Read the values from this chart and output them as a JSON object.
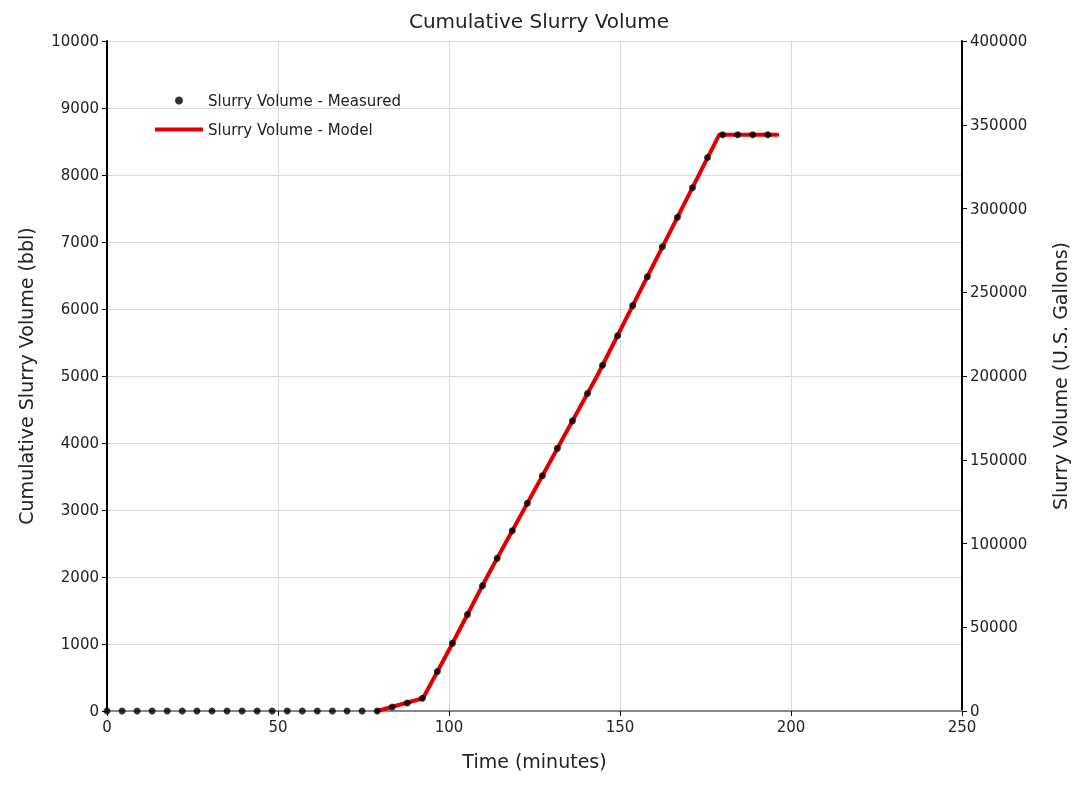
{
  "chart_data": {
    "type": "line",
    "title": "Cumulative Slurry Volume",
    "xlabel": "Time (minutes)",
    "ylabel": "Cumulative Slurry Volume (bbl)",
    "y2label": "Slurry Volume (U.S. Gallons)",
    "series": [
      {
        "name": "Slurry Volume - Measured",
        "type": "scatter",
        "color": "#000000",
        "marker": "circle",
        "x": [
          0,
          4.4,
          8.8,
          13.2,
          17.6,
          22,
          26.3,
          30.7,
          35.1,
          39.5,
          43.9,
          48.3,
          52.7,
          57.1,
          61.5,
          65.9,
          70.2,
          74.6,
          79,
          83.4,
          87.8,
          92.2,
          96.6,
          101,
          105.4,
          109.8,
          114.1,
          118.5,
          122.9,
          127.3,
          131.7,
          136.1,
          140.5,
          144.9,
          149.3,
          153.7,
          158,
          162.4,
          166.8,
          171.2,
          175.6,
          180,
          184.4,
          188.8,
          193.2
        ],
        "values": [
          0,
          0,
          0,
          0,
          0,
          0,
          0,
          0,
          0,
          0,
          0,
          0,
          0,
          0,
          0,
          0,
          0,
          0,
          0,
          60,
          120,
          190,
          590,
          1010,
          1440,
          1870,
          2280,
          2690,
          3100,
          3510,
          3920,
          4330,
          4740,
          5160,
          5600,
          6050,
          6480,
          6930,
          7370,
          7810,
          8260,
          8600,
          8600,
          8600,
          8600
        ]
      },
      {
        "name": "Slurry Volume - Model",
        "color": "#e00000",
        "marker": "none",
        "line_style": "solid",
        "x": [
          79,
          92.4,
          100,
          111.1,
          143.3,
          179,
          196
        ],
        "values": [
          0,
          190,
          910,
          2000,
          5000,
          8600,
          8600
        ]
      }
    ],
    "xlim": [
      0,
      250
    ],
    "xticks": [
      0,
      50,
      100,
      150,
      200,
      250
    ],
    "ylim": [
      0,
      10000
    ],
    "yticks": [
      0,
      1000,
      2000,
      3000,
      4000,
      5000,
      6000,
      7000,
      8000,
      9000,
      10000
    ],
    "y2lim": [
      0,
      400000
    ],
    "y2ticks": [
      0,
      50000,
      100000,
      150000,
      200000,
      250000,
      300000,
      350000,
      400000
    ],
    "grid": true,
    "legend": "top left"
  }
}
